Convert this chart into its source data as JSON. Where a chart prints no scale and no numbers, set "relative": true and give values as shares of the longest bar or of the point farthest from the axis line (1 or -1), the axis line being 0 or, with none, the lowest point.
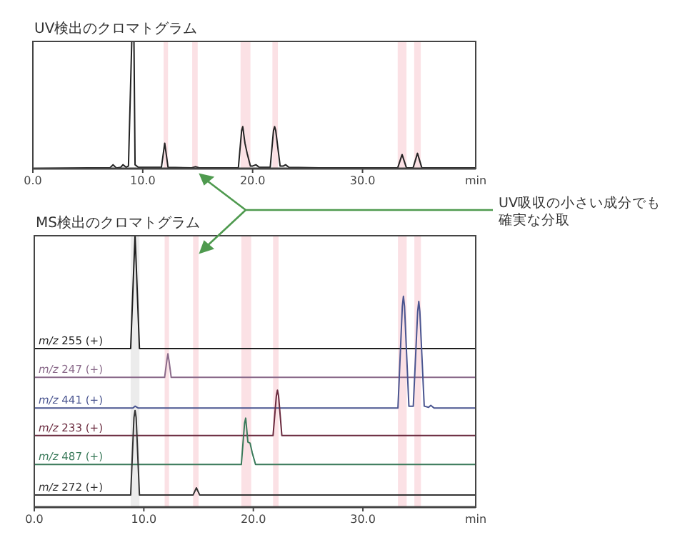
{
  "chart_data": [
    {
      "type": "line",
      "title": "UV検出のクロマトグラム",
      "relative": true,
      "xlabel": "min",
      "xlim": [
        0,
        40.3
      ],
      "xticks": [
        {
          "value": 0,
          "label": "0.0"
        },
        {
          "value": 10,
          "label": "10.0"
        },
        {
          "value": 20,
          "label": "20.0"
        },
        {
          "value": 30,
          "label": "30.0"
        }
      ],
      "bands": [
        {
          "axis": "x",
          "from": 11.9,
          "to": 12.3,
          "color": "#fbe1e5"
        },
        {
          "axis": "x",
          "from": 14.5,
          "to": 15.0,
          "color": "#fbe1e5"
        },
        {
          "axis": "x",
          "from": 18.9,
          "to": 19.8,
          "color": "#fbe1e5"
        },
        {
          "axis": "x",
          "from": 21.8,
          "to": 22.3,
          "color": "#fbe1e5"
        },
        {
          "axis": "x",
          "from": 33.2,
          "to": 34.0,
          "color": "#fbe1e5"
        },
        {
          "axis": "x",
          "from": 34.7,
          "to": 35.3,
          "color": "#fbe1e5"
        }
      ],
      "series": [
        {
          "color": "#222222",
          "x": [
            0,
            5,
            7.0,
            7.3,
            7.6,
            8.0,
            8.2,
            8.5,
            8.7,
            9.0,
            9.2,
            9.3,
            9.6,
            11.7,
            12.0,
            12.3,
            14.4,
            14.8,
            15.2,
            18.7,
            19.0,
            19.1,
            19.3,
            19.5,
            19.8,
            20.0,
            20.3,
            20.6,
            21.6,
            21.9,
            22.0,
            22.1,
            22.5,
            22.8,
            23.0,
            23.3,
            26,
            33.2,
            33.6,
            34.0,
            34.6,
            35.0,
            35.4,
            40.3
          ],
          "values": [
            0,
            0.005,
            0.005,
            0.03,
            0.005,
            0.01,
            0.03,
            0.01,
            0.02,
            1,
            1,
            0.03,
            0.01,
            0.01,
            0.2,
            0.01,
            0.005,
            0.015,
            0.005,
            0.005,
            0.3,
            0.33,
            0.2,
            0.12,
            0.02,
            0.02,
            0.03,
            0.01,
            0.01,
            0.3,
            0.33,
            0.3,
            0.02,
            0.02,
            0.03,
            0.01,
            0.005,
            0.005,
            0.11,
            0.005,
            0.005,
            0.12,
            0.005,
            0.005
          ]
        }
      ]
    },
    {
      "type": "line",
      "title": "MS検出のクロマトグラム",
      "relative": true,
      "xlabel": "min",
      "xlim": [
        0,
        40.3
      ],
      "xticks": [
        {
          "value": 0,
          "label": "0.0"
        },
        {
          "value": 10,
          "label": "10.0"
        },
        {
          "value": 20,
          "label": "20.0"
        },
        {
          "value": 30,
          "label": "30.0"
        }
      ],
      "bands": [
        {
          "axis": "x",
          "from": 8.8,
          "to": 9.6,
          "color": "#ececec"
        },
        {
          "axis": "x",
          "from": 11.9,
          "to": 12.3,
          "color": "#fbe1e5"
        },
        {
          "axis": "x",
          "from": 14.5,
          "to": 15.0,
          "color": "#fbe1e5"
        },
        {
          "axis": "x",
          "from": 18.9,
          "to": 19.8,
          "color": "#fbe1e5"
        },
        {
          "axis": "x",
          "from": 21.8,
          "to": 22.3,
          "color": "#fbe1e5"
        },
        {
          "axis": "x",
          "from": 33.2,
          "to": 34.0,
          "color": "#fbe1e5"
        },
        {
          "axis": "x",
          "from": 34.7,
          "to": 35.3,
          "color": "#fbe1e5"
        }
      ],
      "annotations": [
        "UV吸収の小さい成分でも",
        "確実な分取"
      ],
      "series": [
        {
          "name": "m/z 255 (+)",
          "color": "#1e1e1e",
          "x": [
            0,
            8.8,
            9.1,
            9.2,
            9.3,
            9.6,
            40.3
          ],
          "values": [
            0.584,
            0.584,
            0.9,
            1.0,
            0.9,
            0.584,
            0.584
          ]
        },
        {
          "name": "m/z 247 (+)",
          "color": "#8a6a8a",
          "x": [
            0,
            11.9,
            12.1,
            12.2,
            12.3,
            12.5,
            40.3
          ],
          "values": [
            0.478,
            0.478,
            0.54,
            0.565,
            0.54,
            0.478,
            0.478
          ]
        },
        {
          "name": "m/z 441 (+)",
          "color": "#4a5590",
          "x": [
            0,
            9.0,
            9.2,
            9.5,
            33.2,
            33.6,
            33.7,
            33.8,
            34.2,
            34.6,
            35.0,
            35.1,
            35.2,
            35.6,
            36.0,
            36.2,
            36.5,
            40.3
          ],
          "values": [
            0.365,
            0.365,
            0.372,
            0.365,
            0.365,
            0.74,
            0.777,
            0.74,
            0.372,
            0.372,
            0.72,
            0.758,
            0.72,
            0.372,
            0.368,
            0.375,
            0.365,
            0.365
          ]
        },
        {
          "name": "m/z 233 (+)",
          "color": "#6a2a3e",
          "x": [
            0,
            21.8,
            22.1,
            22.2,
            22.3,
            22.6,
            40.3
          ],
          "values": [
            0.264,
            0.264,
            0.41,
            0.431,
            0.41,
            0.264,
            0.264
          ]
        },
        {
          "name": "m/z 487 (+)",
          "color": "#3a7a5a",
          "x": [
            0,
            18.9,
            19.2,
            19.3,
            19.5,
            19.7,
            19.9,
            20.2,
            40.3
          ],
          "values": [
            0.157,
            0.157,
            0.31,
            0.328,
            0.24,
            0.236,
            0.2,
            0.157,
            0.157
          ]
        },
        {
          "name": "m/z 272 (+)",
          "color": "#333333",
          "x": [
            0,
            8.8,
            9.1,
            9.2,
            9.3,
            9.6,
            14.5,
            14.8,
            15.1,
            40.3
          ],
          "values": [
            0.045,
            0.045,
            0.33,
            0.356,
            0.33,
            0.045,
            0.045,
            0.071,
            0.045,
            0.045
          ]
        }
      ]
    }
  ]
}
